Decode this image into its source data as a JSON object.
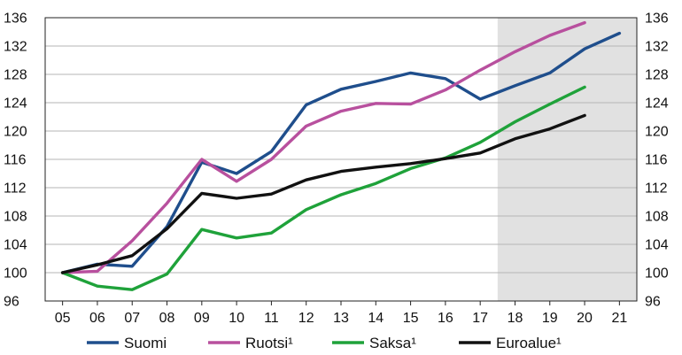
{
  "chart_data": {
    "type": "line",
    "x": [
      "05",
      "06",
      "07",
      "08",
      "09",
      "10",
      "11",
      "12",
      "13",
      "14",
      "15",
      "16",
      "17",
      "18",
      "19",
      "20",
      "21"
    ],
    "ylim": [
      96,
      136
    ],
    "yticks": [
      96,
      100,
      104,
      108,
      112,
      116,
      120,
      124,
      128,
      132,
      136
    ],
    "yticks_labels": [
      "96",
      "100",
      "104",
      "108",
      "112",
      "116",
      "120",
      "124",
      "128",
      "132",
      "136"
    ],
    "grid": "horizontal",
    "shaded_region": {
      "from": "17.5",
      "to": "21.5",
      "color": "#e1e1e1"
    },
    "legend_position": "bottom",
    "series": [
      {
        "name": "Suomi",
        "color": "#1f4e8c",
        "values": [
          100,
          101.2,
          100.9,
          106.5,
          115.6,
          114.0,
          117.1,
          123.7,
          125.9,
          127.0,
          128.2,
          127.4,
          124.5,
          126.4,
          128.2,
          131.6,
          133.8
        ]
      },
      {
        "name": "Ruotsi¹",
        "color": "#b8509e",
        "values": [
          100,
          100.2,
          104.5,
          109.8,
          116.0,
          112.9,
          116.0,
          120.7,
          122.8,
          123.9,
          123.8,
          125.8,
          128.6,
          131.2,
          133.5,
          135.3,
          null
        ]
      },
      {
        "name": "Saksa¹",
        "color": "#1fa23a",
        "values": [
          100,
          98.1,
          97.6,
          99.8,
          106.1,
          104.9,
          105.6,
          108.9,
          111.0,
          112.6,
          114.7,
          116.2,
          118.4,
          121.3,
          123.8,
          126.2,
          null
        ]
      },
      {
        "name": "Euroalue¹",
        "color": "#111111",
        "values": [
          100,
          101.1,
          102.4,
          106.2,
          111.2,
          110.5,
          111.1,
          113.1,
          114.3,
          114.9,
          115.4,
          116.1,
          116.9,
          118.9,
          120.3,
          122.2,
          null
        ]
      }
    ]
  }
}
